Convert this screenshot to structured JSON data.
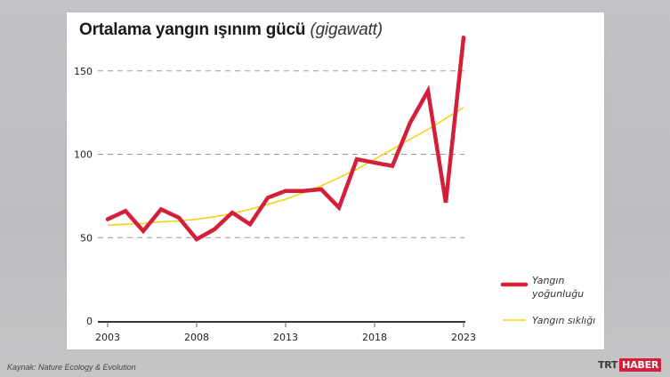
{
  "title": {
    "main": "Ortalama yangın ışınım gücü",
    "unit": "(gigawatt)"
  },
  "source": "Kaynak: Nature Ecology & Evolution",
  "brand": {
    "trt": "TRT",
    "haber": "HABER"
  },
  "colors": {
    "intensity": "#d41f3a",
    "frequency": "#f2d21b",
    "grid": "#9a9a9a",
    "axis": "#333333",
    "background": "#bebfc2",
    "card": "#ffffff"
  },
  "axes": {
    "y_ticks": [
      "0",
      "50",
      "100",
      "150"
    ],
    "x_ticks": [
      "2003",
      "2008",
      "2013",
      "2018",
      "2023"
    ]
  },
  "legend": {
    "intensity_line1": "Yangın",
    "intensity_line2": "yoğunluğu",
    "frequency": "Yangın sıklığı"
  },
  "chart_data": {
    "type": "line",
    "title": "Ortalama yangın ışınım gücü (gigawatt)",
    "xlabel": "",
    "ylabel": "gigawatt",
    "x": [
      2003,
      2004,
      2005,
      2006,
      2007,
      2008,
      2009,
      2010,
      2011,
      2012,
      2013,
      2014,
      2015,
      2016,
      2017,
      2018,
      2019,
      2020,
      2021,
      2022,
      2023
    ],
    "series": [
      {
        "name": "Yangın yoğunluğu",
        "color": "#d41f3a",
        "values": [
          61,
          66,
          54,
          67,
          62,
          49,
          55,
          65,
          58,
          74,
          78,
          78,
          79,
          68,
          97,
          95,
          93,
          119,
          138,
          71,
          170
        ]
      },
      {
        "name": "Yangın sıklığı",
        "color": "#f2d21b",
        "values": [
          57.5,
          58,
          58.5,
          59.5,
          60,
          61,
          62.5,
          64.5,
          67,
          70,
          73,
          77,
          81,
          86,
          91,
          97,
          103,
          109,
          115,
          121.5,
          128
        ]
      }
    ],
    "ylim": [
      0,
      175
    ],
    "y_ticks": [
      0,
      50,
      100,
      150
    ],
    "x_ticks": [
      2003,
      2008,
      2013,
      2018,
      2023
    ],
    "grid": "horizontal dashed at 50, 100, 150",
    "legend_position": "right-bottom"
  }
}
